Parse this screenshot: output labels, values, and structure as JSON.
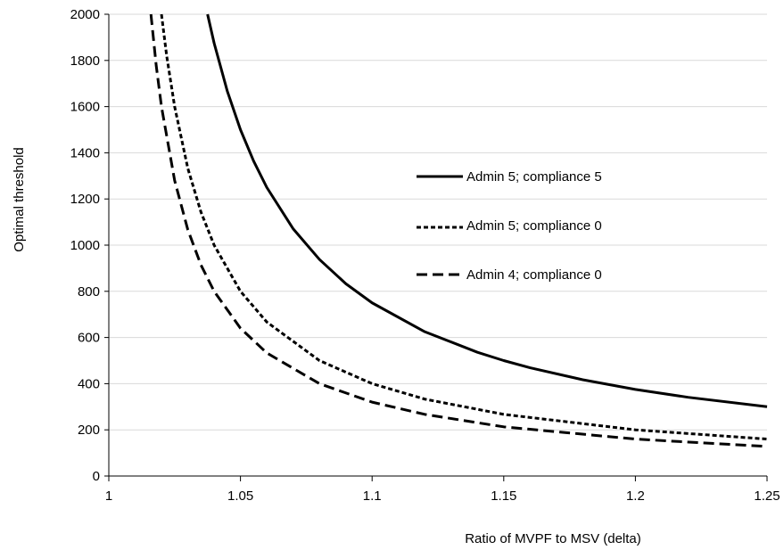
{
  "chart_data": {
    "type": "line",
    "title": "",
    "xlabel": "Ratio of MVPF to MSV (delta)",
    "ylabel": "Optimal threshold",
    "xlim": [
      1,
      1.25
    ],
    "ylim": [
      0,
      2000
    ],
    "x_ticks": [
      "1",
      "1.05",
      "1.1",
      "1.15",
      "1.2",
      "1.25"
    ],
    "y_ticks": [
      "0",
      "200",
      "400",
      "600",
      "800",
      "1000",
      "1200",
      "1400",
      "1600",
      "1800",
      "2000"
    ],
    "grid": "horizontal",
    "legend_position": "inside-right",
    "series": [
      {
        "name": "Admin 5; compliance 5",
        "line_style": "solid",
        "color": "#000000",
        "x": [
          1.0375,
          1.04,
          1.045,
          1.05,
          1.055,
          1.06,
          1.07,
          1.08,
          1.09,
          1.1,
          1.12,
          1.14,
          1.15,
          1.16,
          1.18,
          1.2,
          1.22,
          1.25
        ],
        "y": [
          2000,
          1875,
          1667,
          1500,
          1364,
          1250,
          1071,
          938,
          833,
          750,
          625,
          536,
          500,
          469,
          417,
          375,
          341,
          300
        ]
      },
      {
        "name": "Admin 5; compliance 0",
        "line_style": "dotted",
        "color": "#000000",
        "x": [
          1.02,
          1.022,
          1.025,
          1.03,
          1.035,
          1.04,
          1.05,
          1.06,
          1.08,
          1.1,
          1.12,
          1.15,
          1.2,
          1.25
        ],
        "y": [
          2000,
          1818,
          1600,
          1333,
          1143,
          1000,
          800,
          667,
          500,
          400,
          333,
          267,
          200,
          160
        ]
      },
      {
        "name": "Admin 4; compliance 0",
        "line_style": "dashed",
        "color": "#000000",
        "x": [
          1.016,
          1.018,
          1.02,
          1.025,
          1.03,
          1.035,
          1.04,
          1.05,
          1.06,
          1.08,
          1.1,
          1.12,
          1.15,
          1.2,
          1.25
        ],
        "y": [
          2000,
          1778,
          1600,
          1280,
          1067,
          914,
          800,
          640,
          533,
          400,
          320,
          267,
          213,
          160,
          128
        ]
      }
    ]
  }
}
